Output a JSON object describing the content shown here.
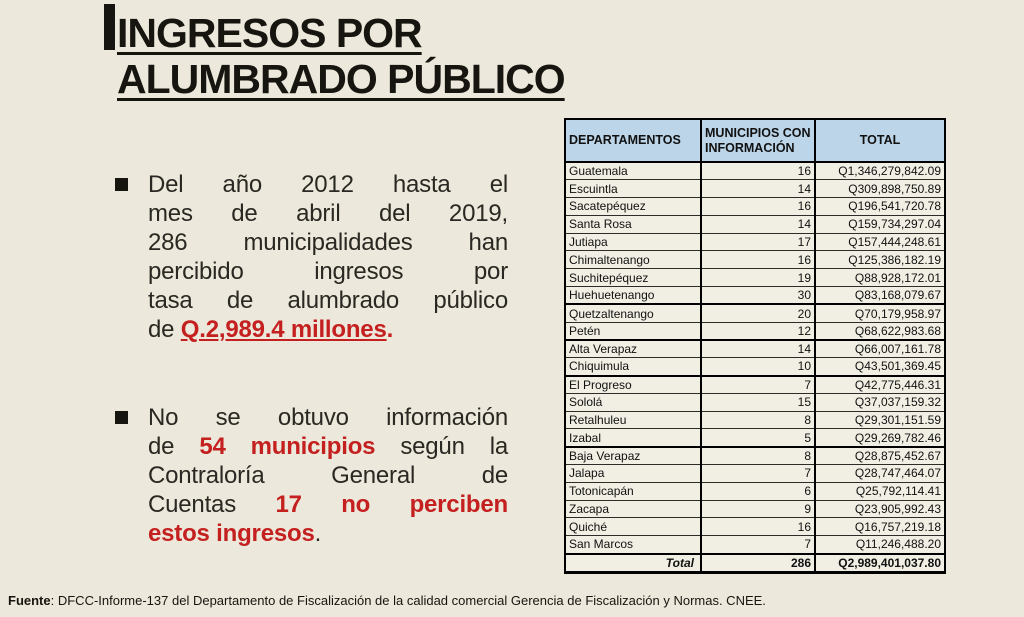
{
  "colors": {
    "background": "#ECE8DB",
    "accent_red": "#C42020",
    "table_header_bg": "#BCD5E9",
    "table_cell_bg": "#F1EEE3",
    "text": "#17150F"
  },
  "title": {
    "line1": "INGRESOS POR",
    "line2": "ALUMBRADO PÚBLICO"
  },
  "bullets": [
    {
      "lines": [
        [
          {
            "t": "Del año 2012 hasta el"
          }
        ],
        [
          {
            "t": "mes de abril del 2019,"
          }
        ],
        [
          {
            "t": "286 municipalidades han"
          }
        ],
        [
          {
            "t": "percibido ingresos por"
          }
        ],
        [
          {
            "t": "tasa de alumbrado público"
          }
        ],
        [
          {
            "t": "de "
          },
          {
            "t": "Q.2,989.4 millones",
            "s": "red underline"
          },
          {
            "t": ".",
            "s": "red"
          }
        ]
      ]
    },
    {
      "lines": [
        [
          {
            "t": "No se obtuvo información"
          }
        ],
        [
          {
            "t": "de "
          },
          {
            "t": "54 municipios",
            "s": "red"
          },
          {
            "t": " según la"
          }
        ],
        [
          {
            "t": "Contraloría General de"
          }
        ],
        [
          {
            "t": "Cuentas "
          },
          {
            "t": "17 no perciben",
            "s": "red"
          }
        ],
        [
          {
            "t": "estos ingresos",
            "s": "red"
          },
          {
            "t": "."
          }
        ]
      ]
    }
  ],
  "table": {
    "headers": [
      "DEPARTAMENTOS",
      "MUNICIPIOS CON INFORMACIÓN",
      "TOTAL"
    ],
    "rows": [
      {
        "departamento": "Guatemala",
        "municipios": "16",
        "total": "Q1,346,279,842.09"
      },
      {
        "departamento": "Escuintla",
        "municipios": "14",
        "total": "Q309,898,750.89"
      },
      {
        "departamento": "Sacatepéquez",
        "municipios": "16",
        "total": "Q196,541,720.78"
      },
      {
        "departamento": "Santa Rosa",
        "municipios": "14",
        "total": "Q159,734,297.04"
      },
      {
        "departamento": "Jutiapa",
        "municipios": "17",
        "total": "Q157,444,248.61"
      },
      {
        "departamento": "Chimaltenango",
        "municipios": "16",
        "total": "Q125,386,182.19"
      },
      {
        "departamento": "Suchitepéquez",
        "municipios": "19",
        "total": "Q88,928,172.01"
      },
      {
        "departamento": "Huehuetenango",
        "municipios": "30",
        "total": "Q83,168,079.67"
      },
      {
        "departamento": "Quetzaltenango",
        "municipios": "20",
        "total": "Q70,179,958.97",
        "thick_top": true
      },
      {
        "departamento": "Petén",
        "municipios": "12",
        "total": "Q68,622,983.68"
      },
      {
        "departamento": "Alta Verapaz",
        "municipios": "14",
        "total": "Q66,007,161.78",
        "thick_top": true
      },
      {
        "departamento": "Chiquimula",
        "municipios": "10",
        "total": "Q43,501,369.45"
      },
      {
        "departamento": "El Progreso",
        "municipios": "7",
        "total": "Q42,775,446.31",
        "thick_top": true
      },
      {
        "departamento": "Sololá",
        "municipios": "15",
        "total": "Q37,037,159.32"
      },
      {
        "departamento": "Retalhuleu",
        "municipios": "8",
        "total": "Q29,301,151.59"
      },
      {
        "departamento": "Izabal",
        "municipios": "5",
        "total": "Q29,269,782.46"
      },
      {
        "departamento": "Baja Verapaz",
        "municipios": "8",
        "total": "Q28,875,452.67",
        "thick_top": true
      },
      {
        "departamento": "Jalapa",
        "municipios": "7",
        "total": "Q28,747,464.07"
      },
      {
        "departamento": "Totonicapán",
        "municipios": "6",
        "total": "Q25,792,114.41"
      },
      {
        "departamento": "Zacapa",
        "municipios": "9",
        "total": "Q23,905,992.43"
      },
      {
        "departamento": "Quiché",
        "municipios": "16",
        "total": "Q16,757,219.18"
      },
      {
        "departamento": "San Marcos",
        "municipios": "7",
        "total": "Q11,246,488.20"
      }
    ],
    "total_row": {
      "label": "Total",
      "municipios": "286",
      "total": "Q2,989,401,037.80"
    }
  },
  "footer": {
    "bold": "Fuente",
    "text": ": DFCC-Informe-137 del Departamento de Fiscalización de la calidad comercial Gerencia de Fiscalización y Normas. CNEE."
  }
}
